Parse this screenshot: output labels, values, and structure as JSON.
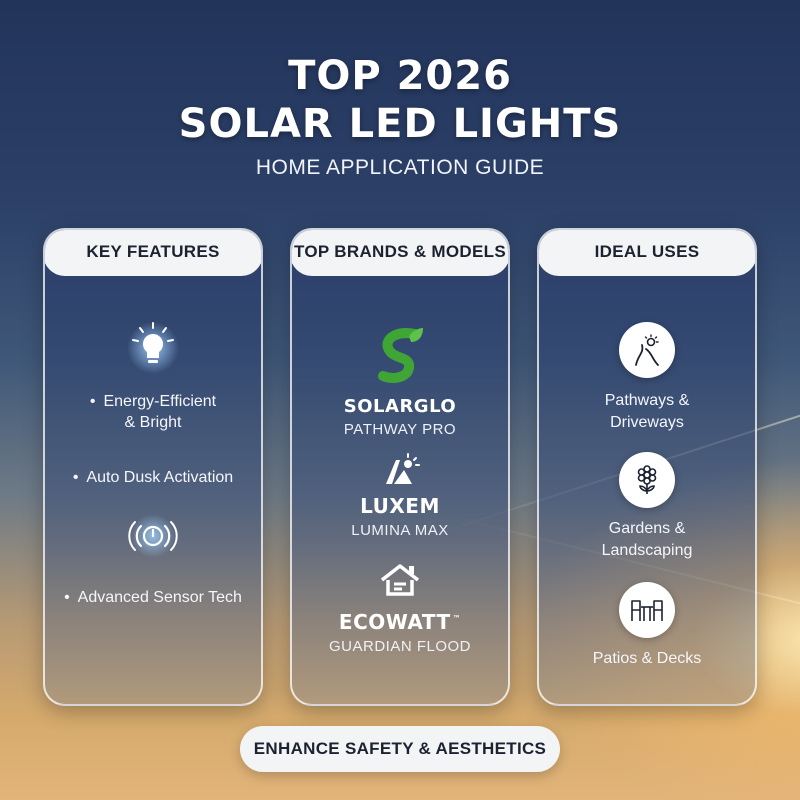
{
  "header": {
    "title_line1": "TOP 2026",
    "title_line2": "SOLAR LED LIGHTS",
    "subtitle": "HOME APPLICATION GUIDE"
  },
  "panels": {
    "features": {
      "heading": "KEY FEATURES",
      "items": [
        {
          "icon": "lightbulb-icon",
          "line1": "Energy-Efficient",
          "line2": "& Bright"
        },
        {
          "icon": "",
          "line1": "Auto Dusk Activation"
        },
        {
          "icon": "sensor-icon",
          "line1": "Advanced Sensor Tech"
        }
      ]
    },
    "brands": {
      "heading": "TOP BRANDS & MODELS",
      "items": [
        {
          "logo": "leaf-s-logo",
          "name": "SOLARGLO",
          "model": "PATHWAY PRO"
        },
        {
          "logo": "sun-panel-logo",
          "name": "LUXEM",
          "model": "LUMINA MAX"
        },
        {
          "logo": "house-logo",
          "name": "ECOWATT",
          "trademark": "™",
          "model": "GUARDIAN FLOOD"
        }
      ]
    },
    "uses": {
      "heading": "IDEAL USES",
      "items": [
        {
          "icon": "pathway-icon",
          "line1": "Pathways &",
          "line2": "Driveways"
        },
        {
          "icon": "flower-icon",
          "line1": "Gardens &",
          "line2": "Landscaping"
        },
        {
          "icon": "patio-furniture-icon",
          "line1": "Patios & Decks"
        }
      ]
    }
  },
  "footer": {
    "label": "ENHANCE SAFETY & AESTHETICS"
  },
  "colors": {
    "accent_blue": "#2c4068",
    "pill_bg": "#f3f4f6",
    "pill_text": "#1c2230",
    "brand_green": "#3fa535"
  }
}
